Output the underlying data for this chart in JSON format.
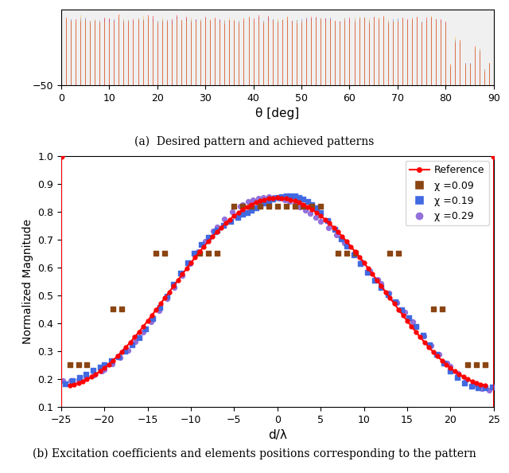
{
  "title_a": "(a)  Desired pattern and achieved patterns",
  "title_b": "(b) Excitation coefficients and elements positions corresponding to the pattern",
  "subplot_a": {
    "xlabel": "θ [deg]",
    "xlim": [
      0,
      90
    ],
    "ylim": [
      -50,
      0
    ],
    "yticks": [
      -50
    ],
    "xticks": [
      0,
      10,
      20,
      30,
      40,
      50,
      60,
      70,
      80,
      90
    ]
  },
  "subplot_b": {
    "xlabel": "d/λ",
    "ylabel": "Normalized Magnitude",
    "xlim": [
      -25,
      25
    ],
    "ylim": [
      0.1,
      1.0
    ],
    "yticks": [
      0.1,
      0.2,
      0.3,
      0.4,
      0.5,
      0.6,
      0.7,
      0.8,
      0.9,
      1.0
    ],
    "xticks": [
      -25,
      -20,
      -15,
      -10,
      -5,
      0,
      5,
      10,
      15,
      20,
      25
    ]
  },
  "reference_color": "#FF0000",
  "chi009_color": "#8B4513",
  "chi019_color": "#4169E1",
  "chi029_color": "#9370DB",
  "legend_labels": [
    "Reference",
    "χ =0.09",
    "χ =0.19",
    "χ =0.29"
  ]
}
